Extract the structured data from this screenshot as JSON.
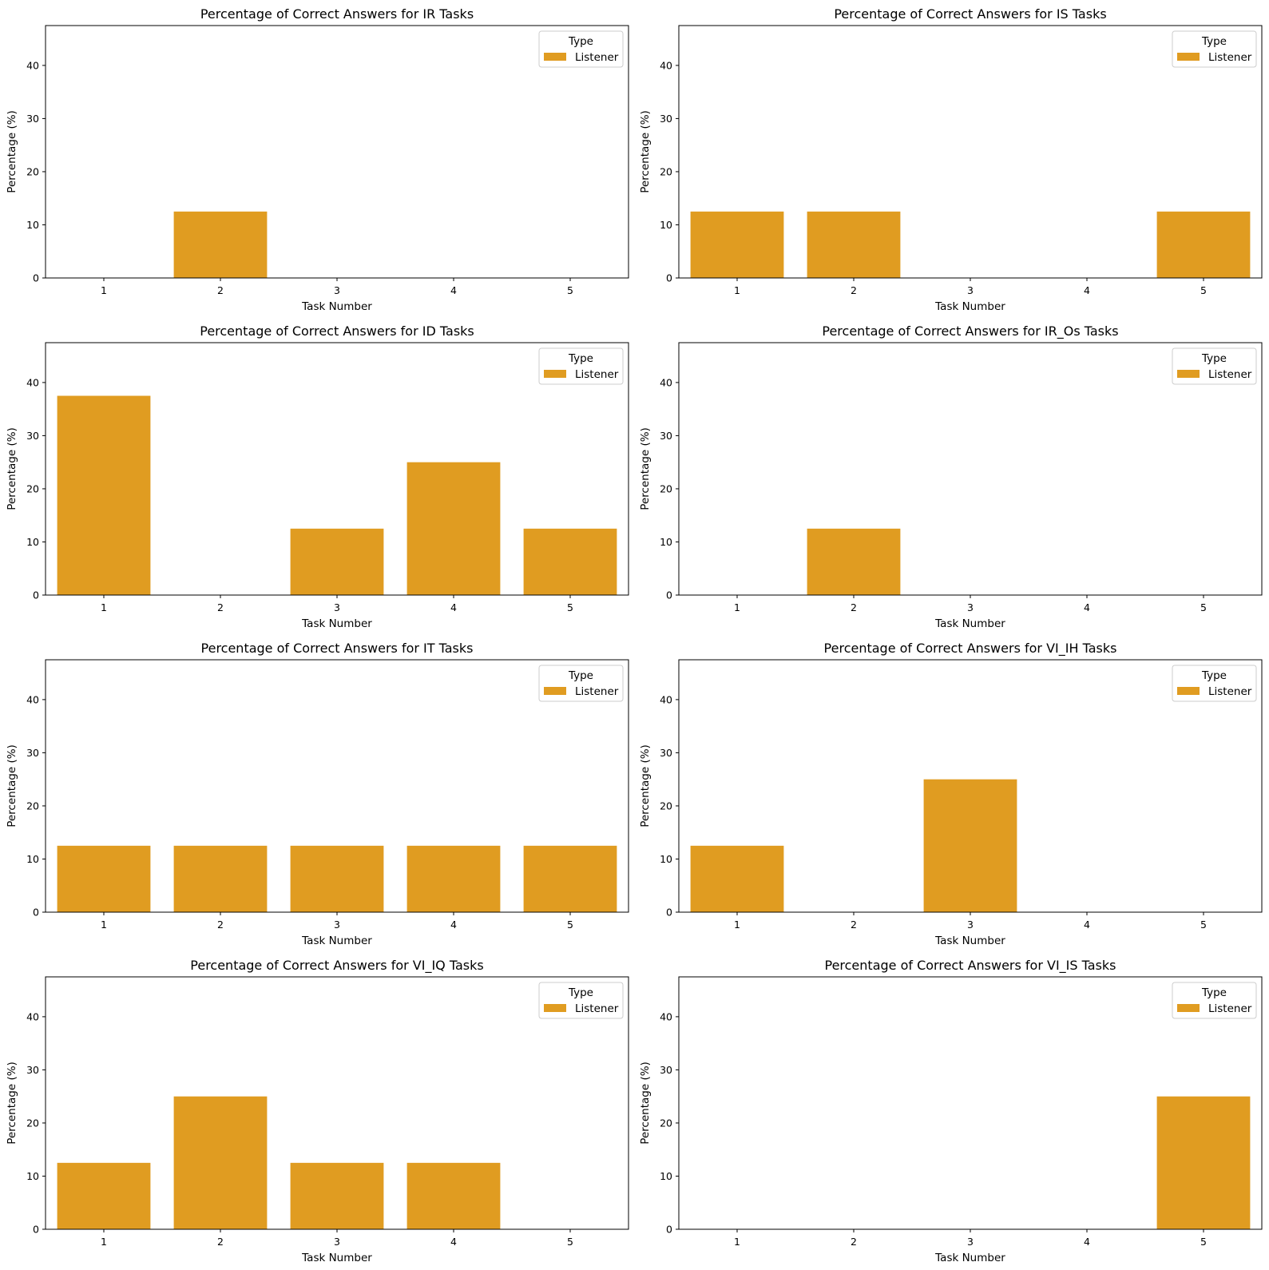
{
  "figure": {
    "background": "#ffffff"
  },
  "chart_data": [
    {
      "type": "bar",
      "title": "Percentage of Correct Answers for IR Tasks",
      "xlabel": "Task Number",
      "ylabel": "Percentage (%)",
      "categories": [
        "1",
        "2",
        "3",
        "4",
        "5"
      ],
      "ylim": [
        0,
        47.5
      ],
      "yticks": [
        "0",
        "10",
        "20",
        "30",
        "40"
      ],
      "legend": {
        "title": "Type",
        "location": "top-right"
      },
      "series": [
        {
          "name": "Listener",
          "color": "#e09c21",
          "values": [
            0,
            12.5,
            0,
            0,
            0
          ]
        }
      ]
    },
    {
      "type": "bar",
      "title": "Percentage of Correct Answers for IS Tasks",
      "xlabel": "Task Number",
      "ylabel": "Percentage (%)",
      "categories": [
        "1",
        "2",
        "3",
        "4",
        "5"
      ],
      "ylim": [
        0,
        47.5
      ],
      "yticks": [
        "0",
        "10",
        "20",
        "30",
        "40"
      ],
      "legend": {
        "title": "Type",
        "location": "top-right"
      },
      "series": [
        {
          "name": "Listener",
          "color": "#e09c21",
          "values": [
            12.5,
            12.5,
            0,
            0,
            12.5
          ]
        }
      ]
    },
    {
      "type": "bar",
      "title": "Percentage of Correct Answers for ID Tasks",
      "xlabel": "Task Number",
      "ylabel": "Percentage (%)",
      "categories": [
        "1",
        "2",
        "3",
        "4",
        "5"
      ],
      "ylim": [
        0,
        47.5
      ],
      "yticks": [
        "0",
        "10",
        "20",
        "30",
        "40"
      ],
      "legend": {
        "title": "Type",
        "location": "top-right"
      },
      "series": [
        {
          "name": "Listener",
          "color": "#e09c21",
          "values": [
            37.5,
            0,
            12.5,
            25,
            12.5
          ]
        }
      ]
    },
    {
      "type": "bar",
      "title": "Percentage of Correct Answers for IR_Os Tasks",
      "xlabel": "Task Number",
      "ylabel": "Percentage (%)",
      "categories": [
        "1",
        "2",
        "3",
        "4",
        "5"
      ],
      "ylim": [
        0,
        47.5
      ],
      "yticks": [
        "0",
        "10",
        "20",
        "30",
        "40"
      ],
      "legend": {
        "title": "Type",
        "location": "top-right"
      },
      "series": [
        {
          "name": "Listener",
          "color": "#e09c21",
          "values": [
            0,
            12.5,
            0,
            0,
            0
          ]
        }
      ]
    },
    {
      "type": "bar",
      "title": "Percentage of Correct Answers for IT Tasks",
      "xlabel": "Task Number",
      "ylabel": "Percentage (%)",
      "categories": [
        "1",
        "2",
        "3",
        "4",
        "5"
      ],
      "ylim": [
        0,
        47.5
      ],
      "yticks": [
        "0",
        "10",
        "20",
        "30",
        "40"
      ],
      "legend": {
        "title": "Type",
        "location": "top-right"
      },
      "series": [
        {
          "name": "Listener",
          "color": "#e09c21",
          "values": [
            12.5,
            12.5,
            12.5,
            12.5,
            12.5
          ]
        }
      ]
    },
    {
      "type": "bar",
      "title": "Percentage of Correct Answers for VI_IH Tasks",
      "xlabel": "Task Number",
      "ylabel": "Percentage (%)",
      "categories": [
        "1",
        "2",
        "3",
        "4",
        "5"
      ],
      "ylim": [
        0,
        47.5
      ],
      "yticks": [
        "0",
        "10",
        "20",
        "30",
        "40"
      ],
      "legend": {
        "title": "Type",
        "location": "top-right"
      },
      "series": [
        {
          "name": "Listener",
          "color": "#e09c21",
          "values": [
            12.5,
            0,
            25,
            0,
            0
          ]
        }
      ]
    },
    {
      "type": "bar",
      "title": "Percentage of Correct Answers for VI_IQ Tasks",
      "xlabel": "Task Number",
      "ylabel": "Percentage (%)",
      "categories": [
        "1",
        "2",
        "3",
        "4",
        "5"
      ],
      "ylim": [
        0,
        47.5
      ],
      "yticks": [
        "0",
        "10",
        "20",
        "30",
        "40"
      ],
      "legend": {
        "title": "Type",
        "location": "top-right"
      },
      "series": [
        {
          "name": "Listener",
          "color": "#e09c21",
          "values": [
            12.5,
            25,
            12.5,
            12.5,
            0
          ]
        }
      ]
    },
    {
      "type": "bar",
      "title": "Percentage of Correct Answers for VI_IS Tasks",
      "xlabel": "Task Number",
      "ylabel": "Percentage (%)",
      "categories": [
        "1",
        "2",
        "3",
        "4",
        "5"
      ],
      "ylim": [
        0,
        47.5
      ],
      "yticks": [
        "0",
        "10",
        "20",
        "30",
        "40"
      ],
      "legend": {
        "title": "Type",
        "location": "top-right"
      },
      "series": [
        {
          "name": "Listener",
          "color": "#e09c21",
          "values": [
            0,
            0,
            0,
            0,
            25
          ]
        }
      ]
    }
  ]
}
